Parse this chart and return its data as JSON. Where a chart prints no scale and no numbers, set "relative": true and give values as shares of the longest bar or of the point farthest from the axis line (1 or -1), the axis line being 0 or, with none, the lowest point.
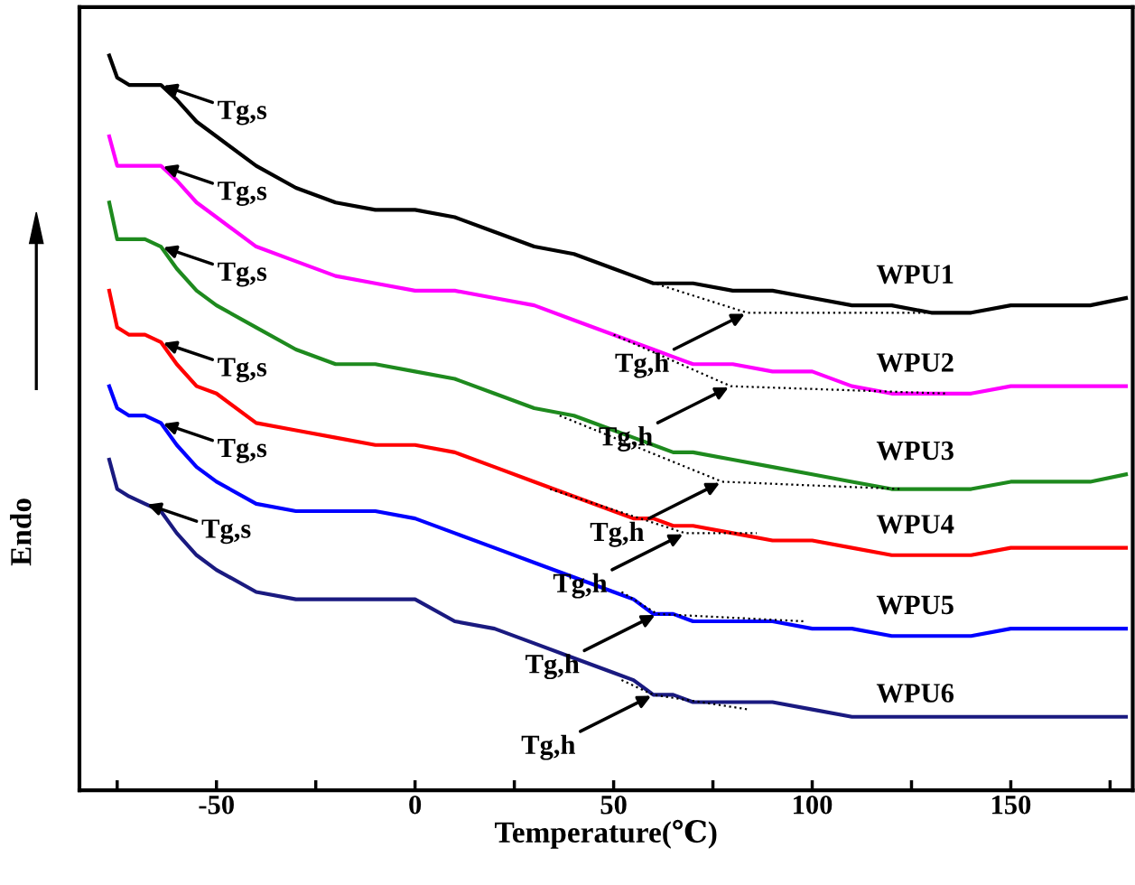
{
  "chart_data": {
    "type": "line",
    "relative": true,
    "xlabel": "Temperature(℃)",
    "ylabel": "Endo",
    "xlim": [
      -84.5,
      180.7
    ],
    "xticks": [
      {
        "value": -75,
        "label": null
      },
      -50,
      {
        "value": -25,
        "label": null
      },
      0,
      {
        "value": 25,
        "label": null
      },
      50,
      {
        "value": 75,
        "label": null
      },
      100,
      {
        "value": 125,
        "label": null
      },
      150,
      {
        "value": 175,
        "label": null
      }
    ],
    "tick_labels": "x",
    "grid": false,
    "legend": false,
    "x": [
      -77,
      -75,
      -72,
      -68,
      -64,
      -60,
      -55,
      -50,
      -40,
      -30,
      -20,
      -10,
      0,
      10,
      20,
      30,
      40,
      50,
      55,
      60,
      65,
      70,
      80,
      90,
      100,
      110,
      120,
      130,
      140,
      150,
      160,
      170,
      179
    ],
    "series": [
      {
        "name": "WPU1",
        "color": "#000000",
        "values": [
          1.0,
          0.97,
          0.96,
          0.96,
          0.96,
          0.94,
          0.91,
          0.89,
          0.85,
          0.82,
          0.8,
          0.79,
          0.79,
          0.78,
          0.76,
          0.74,
          0.73,
          0.71,
          0.7,
          0.69,
          0.69,
          0.69,
          0.68,
          0.68,
          0.67,
          0.66,
          0.66,
          0.65,
          0.65,
          0.66,
          0.66,
          0.66,
          0.67
        ]
      },
      {
        "name": "WPU2",
        "color": "#ff00ff",
        "values": [
          0.89,
          0.85,
          0.85,
          0.85,
          0.85,
          0.83,
          0.8,
          0.78,
          0.74,
          0.72,
          0.7,
          0.69,
          0.68,
          0.68,
          0.67,
          0.66,
          0.64,
          0.62,
          0.61,
          0.6,
          0.59,
          0.58,
          0.58,
          0.57,
          0.57,
          0.55,
          0.54,
          0.54,
          0.54,
          0.55,
          0.55,
          0.55,
          0.55
        ]
      },
      {
        "name": "WPU3",
        "color": "#1e8a1e",
        "values": [
          0.8,
          0.75,
          0.75,
          0.75,
          0.74,
          0.71,
          0.68,
          0.66,
          0.63,
          0.6,
          0.58,
          0.58,
          0.57,
          0.56,
          0.54,
          0.52,
          0.51,
          0.49,
          0.48,
          0.47,
          0.46,
          0.46,
          0.45,
          0.44,
          0.43,
          0.42,
          0.41,
          0.41,
          0.41,
          0.42,
          0.42,
          0.42,
          0.43
        ]
      },
      {
        "name": "WPU4",
        "color": "#ff0000",
        "values": [
          0.68,
          0.63,
          0.62,
          0.62,
          0.61,
          0.58,
          0.55,
          0.54,
          0.5,
          0.49,
          0.48,
          0.47,
          0.47,
          0.46,
          0.44,
          0.42,
          0.4,
          0.38,
          0.37,
          0.37,
          0.36,
          0.36,
          0.35,
          0.34,
          0.34,
          0.33,
          0.32,
          0.32,
          0.32,
          0.33,
          0.33,
          0.33,
          0.33
        ]
      },
      {
        "name": "WPU5",
        "color": "#0000ff",
        "values": [
          0.55,
          0.52,
          0.51,
          0.51,
          0.5,
          0.47,
          0.44,
          0.42,
          0.39,
          0.38,
          0.38,
          0.38,
          0.37,
          0.35,
          0.33,
          0.31,
          0.29,
          0.27,
          0.26,
          0.24,
          0.24,
          0.23,
          0.23,
          0.23,
          0.22,
          0.22,
          0.21,
          0.21,
          0.21,
          0.22,
          0.22,
          0.22,
          0.22
        ]
      },
      {
        "name": "WPU6",
        "color": "#1a1a80",
        "values": [
          0.45,
          0.41,
          0.4,
          0.39,
          0.38,
          0.35,
          0.32,
          0.3,
          0.27,
          0.26,
          0.26,
          0.26,
          0.26,
          0.23,
          0.22,
          0.2,
          0.18,
          0.16,
          0.15,
          0.13,
          0.13,
          0.12,
          0.12,
          0.12,
          0.11,
          0.1,
          0.1,
          0.1,
          0.1,
          0.1,
          0.1,
          0.1,
          0.1
        ]
      },
      {
        "type": "line",
        "line_style": "dotted",
        "color": "#000000",
        "x": [
          54.5,
          83.6,
          131.8
        ],
        "values": [
          0.7,
          0.65,
          0.65
        ]
      },
      {
        "type": "line",
        "line_style": "dotted",
        "color": "#000000",
        "x": [
          50,
          79.5,
          134
        ],
        "values": [
          0.62,
          0.55,
          0.54
        ]
      },
      {
        "type": "line",
        "line_style": "dotted",
        "color": "#000000",
        "x": [
          36.4,
          77.3,
          122.7
        ],
        "values": [
          0.51,
          0.42,
          0.41
        ]
      },
      {
        "type": "line",
        "line_style": "dotted",
        "color": "#000000",
        "x": [
          34,
          68,
          86
        ],
        "values": [
          0.41,
          0.35,
          0.35
        ]
      },
      {
        "type": "line",
        "line_style": "dotted",
        "color": "#000000",
        "x": [
          52,
          61,
          98
        ],
        "values": [
          0.27,
          0.24,
          0.23
        ]
      },
      {
        "type": "line",
        "line_style": "dotted",
        "color": "#000000",
        "x": [
          52,
          60,
          84
        ],
        "values": [
          0.15,
          0.13,
          0.11
        ]
      }
    ],
    "annotations": [
      {
        "text": "Tg,s",
        "x": -64,
        "y": 0.96
      },
      {
        "text": "Tg,s",
        "x": -64,
        "y": 0.85
      },
      {
        "text": "Tg,s",
        "x": -64,
        "y": 0.74
      },
      {
        "text": "Tg,s",
        "x": -64,
        "y": 0.61
      },
      {
        "text": "Tg,s",
        "x": -64,
        "y": 0.5
      },
      {
        "text": "Tg,s",
        "x": -68,
        "y": 0.39
      },
      {
        "text": "Tg,h",
        "x": 83.6,
        "y": 0.65
      },
      {
        "text": "Tg,h",
        "x": 79.5,
        "y": 0.55
      },
      {
        "text": "Tg,h",
        "x": 77.3,
        "y": 0.42
      },
      {
        "text": "Tg,h",
        "x": 68,
        "y": 0.35
      },
      {
        "text": "Tg,h",
        "x": 61,
        "y": 0.24
      },
      {
        "text": "Tg,h",
        "x": 60,
        "y": 0.13
      }
    ]
  }
}
